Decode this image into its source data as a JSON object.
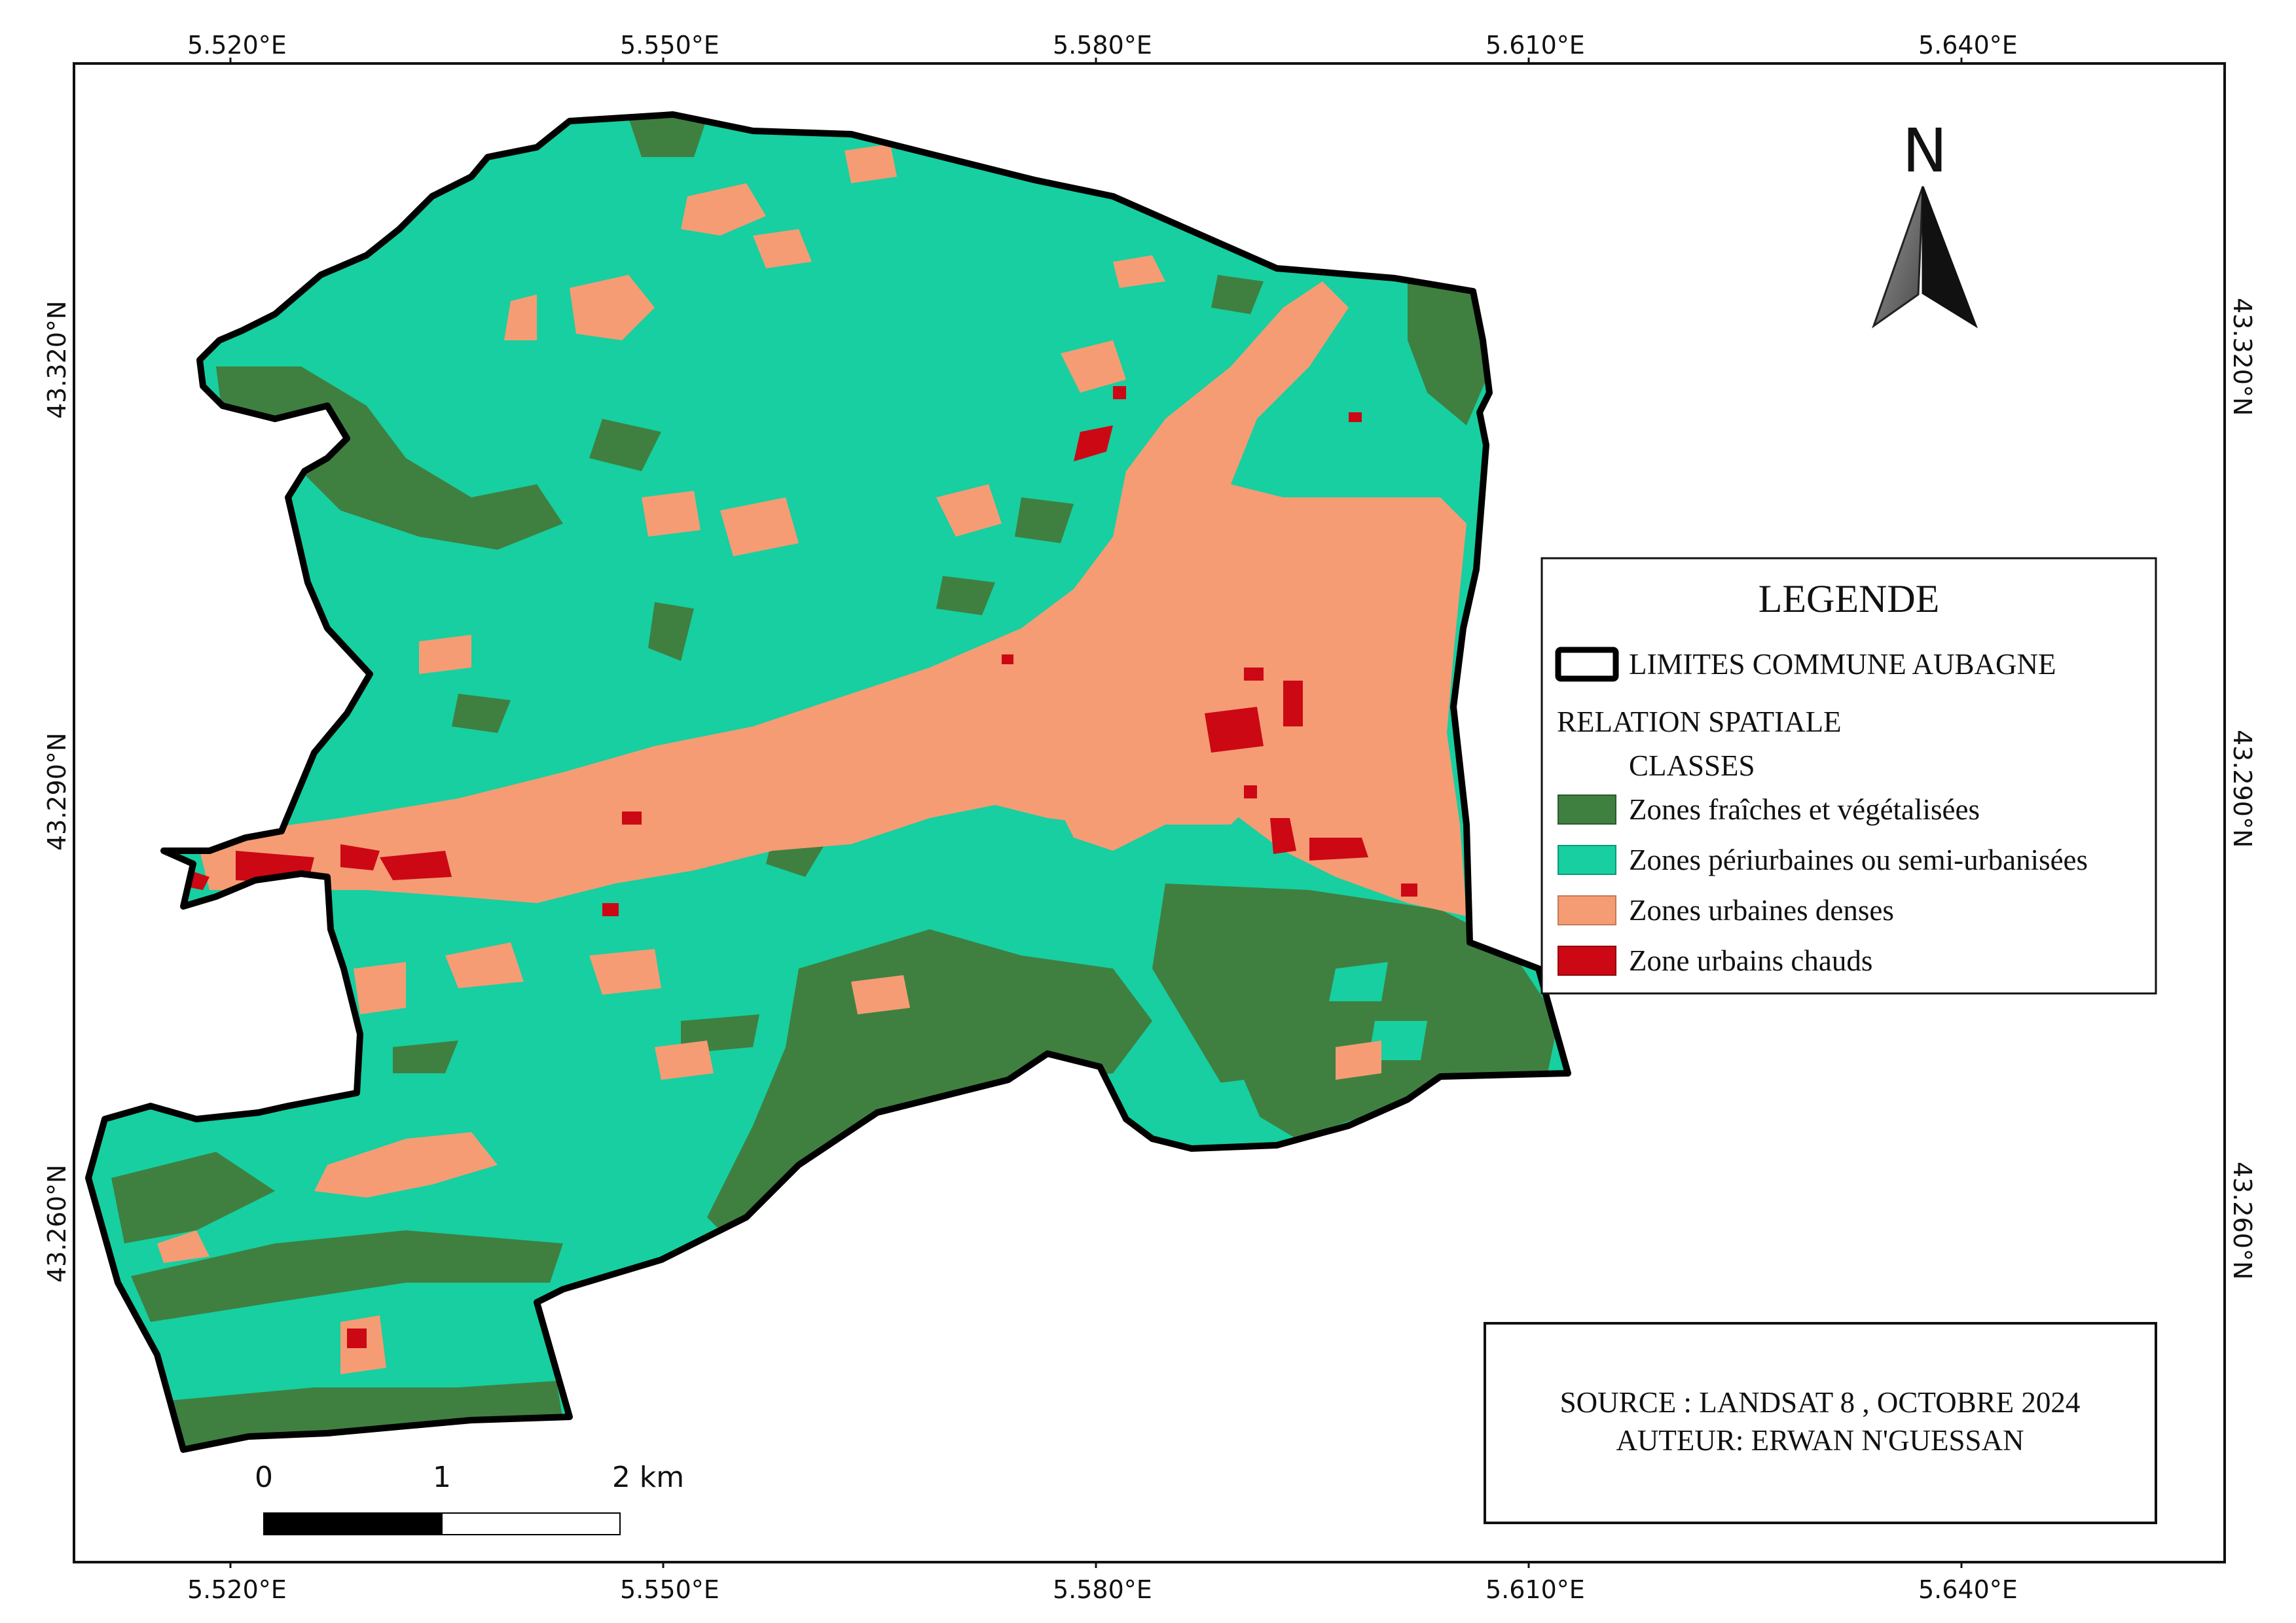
{
  "map": {
    "longitude_labels": [
      "5.520°E",
      "5.550°E",
      "5.580°E",
      "5.610°E",
      "5.640°E"
    ],
    "latitude_labels": [
      "43.320°N",
      "43.290°N",
      "43.260°N"
    ],
    "colors": {
      "vegetation": "#3f8040",
      "periurban": "#17cfa0",
      "urban_dense": "#f59c74",
      "hot_urban": "#cc0814",
      "boundary": "#000000"
    }
  },
  "north_arrow": {
    "label": "N"
  },
  "legend": {
    "title": "LEGENDE",
    "boundary_label": "LIMITES COMMUNE AUBAGNE",
    "group_label": "RELATION SPATIALE",
    "subgroup_label": "CLASSES",
    "classes": [
      {
        "label": "Zones fraîches et végétalisées",
        "color": "#3f8040"
      },
      {
        "label": "Zones périurbaines ou semi-urbanisées",
        "color": "#17cfa0"
      },
      {
        "label": "Zones urbaines denses",
        "color": "#f59c74"
      },
      {
        "label": "Zone urbains chauds",
        "color": "#cc0814"
      }
    ]
  },
  "scale_bar": {
    "labels": [
      "0",
      "1",
      "2 km"
    ]
  },
  "source_box": {
    "line1": "SOURCE : LANDSAT 8 , OCTOBRE 2024",
    "line2": "AUTEUR: ERWAN N'GUESSAN"
  }
}
